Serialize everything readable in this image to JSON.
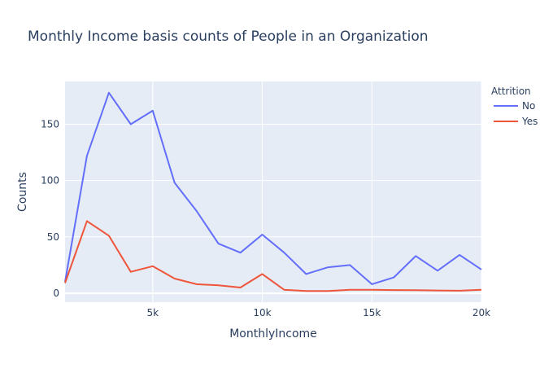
{
  "chart_data": {
    "type": "line",
    "title": "Monthly Income basis counts of People in an Organization",
    "xlabel": "MonthlyIncome",
    "ylabel": "Counts",
    "xlim": [
      1000,
      20000
    ],
    "ylim": [
      -8,
      188
    ],
    "x_ticks": [
      {
        "value": 5000,
        "label": "5k"
      },
      {
        "value": 10000,
        "label": "10k"
      },
      {
        "value": 15000,
        "label": "15k"
      },
      {
        "value": 20000,
        "label": "20k"
      }
    ],
    "y_ticks": [
      {
        "value": 0,
        "label": "0"
      },
      {
        "value": 50,
        "label": "50"
      },
      {
        "value": 100,
        "label": "100"
      },
      {
        "value": 150,
        "label": "150"
      }
    ],
    "grid": true,
    "legend": {
      "title": "Attrition",
      "placement": "top-right"
    },
    "series": [
      {
        "name": "No",
        "color": "#636efa",
        "points": [
          [
            1000,
            10
          ],
          [
            2000,
            122
          ],
          [
            3000,
            178
          ],
          [
            4000,
            150
          ],
          [
            5000,
            162
          ],
          [
            6000,
            98
          ],
          [
            7000,
            73
          ],
          [
            8000,
            44
          ],
          [
            9000,
            36
          ],
          [
            10000,
            52
          ],
          [
            11000,
            36
          ],
          [
            12000,
            17
          ],
          [
            13000,
            23
          ],
          [
            14000,
            25
          ],
          [
            15000,
            8
          ],
          [
            16000,
            14
          ],
          [
            17000,
            33
          ],
          [
            18000,
            20
          ],
          [
            19000,
            34
          ],
          [
            20000,
            21
          ]
        ]
      },
      {
        "name": "Yes",
        "color": "#ef553b",
        "points": [
          [
            1000,
            9
          ],
          [
            2000,
            64
          ],
          [
            3000,
            51
          ],
          [
            4000,
            19
          ],
          [
            5000,
            24
          ],
          [
            6000,
            13
          ],
          [
            7000,
            8
          ],
          [
            8000,
            7
          ],
          [
            9000,
            5
          ],
          [
            10000,
            17
          ],
          [
            11000,
            3
          ],
          [
            12000,
            2
          ],
          [
            13000,
            2
          ],
          [
            14000,
            3
          ],
          [
            15000,
            3
          ],
          [
            16000,
            2.8
          ],
          [
            17000,
            2.6
          ],
          [
            18000,
            2.4
          ],
          [
            19000,
            2.2
          ],
          [
            20000,
            3
          ]
        ]
      }
    ]
  }
}
